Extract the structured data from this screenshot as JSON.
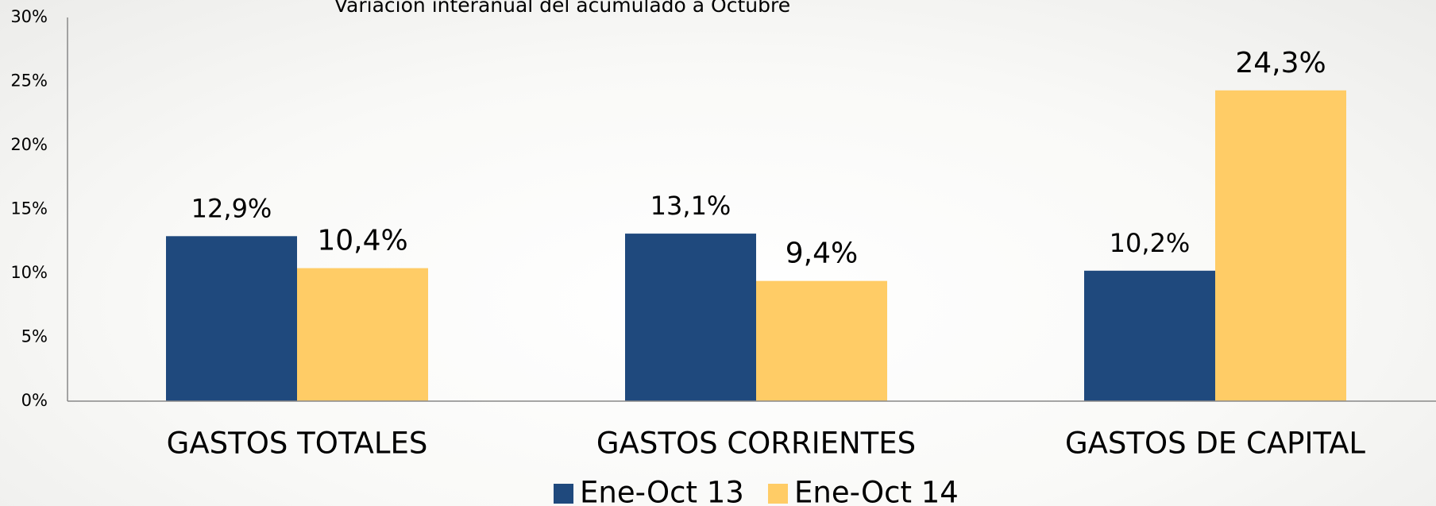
{
  "chart_data": {
    "type": "bar",
    "title": "Variación interanual del acumulado a Octubre",
    "categories": [
      "GASTOS TOTALES",
      "GASTOS CORRIENTES",
      "GASTOS DE CAPITAL"
    ],
    "series": [
      {
        "name": "Ene-Oct 13",
        "color": "#1f497d",
        "values": [
          12.9,
          13.1,
          10.2
        ],
        "value_labels": [
          "12,9%",
          "13,1%",
          "10,2%"
        ]
      },
      {
        "name": "Ene-Oct 14",
        "color": "#ffcc66",
        "values": [
          10.4,
          9.4,
          24.3
        ],
        "value_labels": [
          "10,4%",
          "9,4%",
          "24,3%"
        ]
      }
    ],
    "ylim": [
      0,
      30
    ],
    "yticks": [
      {
        "value": 0,
        "label": "0%"
      },
      {
        "value": 5,
        "label": "5%"
      },
      {
        "value": 10,
        "label": "10%"
      },
      {
        "value": 15,
        "label": "15%"
      },
      {
        "value": 20,
        "label": "20%"
      },
      {
        "value": 25,
        "label": "25%"
      },
      {
        "value": 30,
        "label": "30%"
      }
    ],
    "grid": false,
    "legend": "bottom"
  }
}
